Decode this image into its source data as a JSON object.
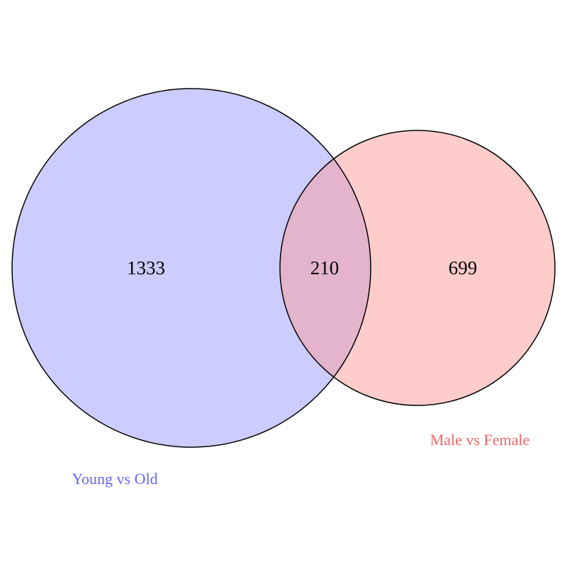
{
  "diagram": {
    "type": "venn",
    "sets": [
      {
        "label": "Young vs Old",
        "only_count": "1333",
        "fill_color": "#ccccff",
        "label_color": "#6666ee"
      },
      {
        "label": "Male vs Female",
        "only_count": "699",
        "fill_color": "#ffcccc",
        "label_color": "#ee6666"
      }
    ],
    "intersection": {
      "count": "210",
      "fill_color": "#e4b4cc"
    },
    "outline_color": "#000000"
  }
}
